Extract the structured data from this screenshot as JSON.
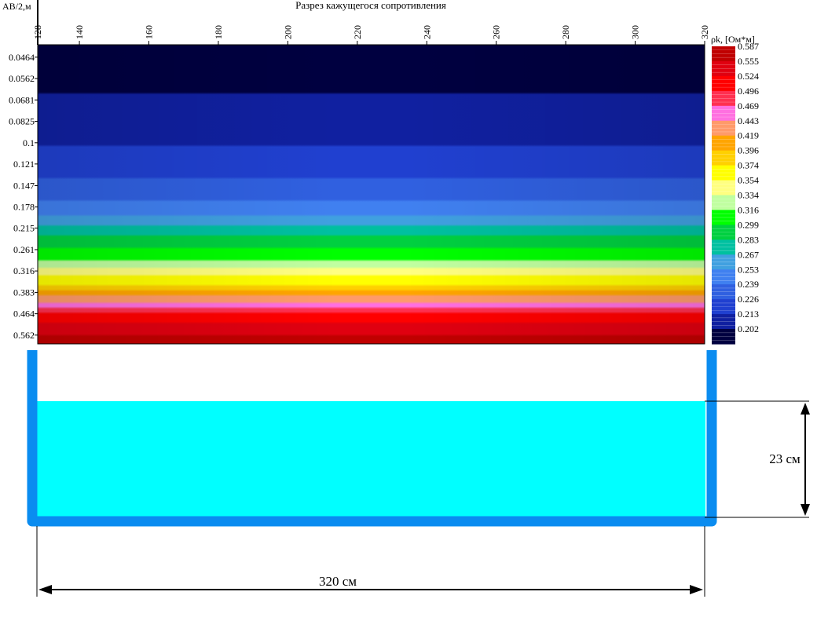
{
  "chart_data": {
    "type": "heatmap",
    "title": "Разрез кажущегося сопротивления",
    "ylabel": "AB/2,м",
    "x_ticks": [
      128,
      140,
      160,
      180,
      200,
      220,
      240,
      260,
      280,
      300,
      320
    ],
    "xlim": [
      128,
      320
    ],
    "y_ticks": [
      0.0464,
      0.0562,
      0.0681,
      0.0825,
      0.1,
      0.121,
      0.147,
      0.178,
      0.215,
      0.261,
      0.316,
      0.383,
      0.464,
      0.562
    ],
    "y_tick_labels": [
      "0.0464",
      "0.0562",
      "0.0681",
      "0.0825",
      "0.1",
      "0.121",
      "0.147",
      "0.178",
      "0.215",
      "0.261",
      "0.316",
      "0.383",
      "0.464",
      "0.562"
    ],
    "y_scale": "log",
    "y_direction": "down",
    "colorbar": {
      "title": "ρk, [Ом*м]",
      "levels": [
        0.587,
        0.555,
        0.524,
        0.496,
        0.469,
        0.443,
        0.419,
        0.396,
        0.374,
        0.354,
        0.334,
        0.316,
        0.299,
        0.283,
        0.267,
        0.253,
        0.239,
        0.226,
        0.213,
        0.202
      ],
      "level_labels": [
        "0.587",
        "0.555",
        "0.524",
        "0.496",
        "0.469",
        "0.443",
        "0.419",
        "0.396",
        "0.374",
        "0.354",
        "0.334",
        "0.316",
        "0.299",
        "0.283",
        "0.267",
        "0.253",
        "0.239",
        "0.226",
        "0.213",
        "0.202"
      ],
      "colors_high_to_low": [
        "#c00000",
        "#e00010",
        "#ff0000",
        "#ff3050",
        "#ff70e0",
        "#ff9a6a",
        "#ffa500",
        "#ffd000",
        "#ffff00",
        "#ffff80",
        "#c0ffa0",
        "#00ff00",
        "#00d040",
        "#00c0a0",
        "#40a0e0",
        "#4080f0",
        "#3060e0",
        "#2040d0",
        "#1020a0",
        "#000040"
      ]
    },
    "field_profile": [
      {
        "ab2": 0.0464,
        "rho": 0.202
      },
      {
        "ab2": 0.0562,
        "rho": 0.209
      },
      {
        "ab2": 0.0681,
        "rho": 0.215
      },
      {
        "ab2": 0.0825,
        "rho": 0.22
      },
      {
        "ab2": 0.1,
        "rho": 0.225
      },
      {
        "ab2": 0.121,
        "rho": 0.232
      },
      {
        "ab2": 0.147,
        "rho": 0.242
      },
      {
        "ab2": 0.178,
        "rho": 0.258
      },
      {
        "ab2": 0.2,
        "rho": 0.27
      },
      {
        "ab2": 0.215,
        "rho": 0.29
      },
      {
        "ab2": 0.24,
        "rho": 0.305
      },
      {
        "ab2": 0.261,
        "rho": 0.318
      },
      {
        "ab2": 0.29,
        "rho": 0.335
      },
      {
        "ab2": 0.316,
        "rho": 0.36
      },
      {
        "ab2": 0.35,
        "rho": 0.39
      },
      {
        "ab2": 0.383,
        "rho": 0.425
      },
      {
        "ab2": 0.42,
        "rho": 0.47
      },
      {
        "ab2": 0.464,
        "rho": 0.53
      },
      {
        "ab2": 0.51,
        "rho": 0.56
      },
      {
        "ab2": 0.562,
        "rho": 0.587
      }
    ]
  },
  "tank": {
    "depth_label": "23 см",
    "width_label": "320 см",
    "wall_color": "#0a8cf0",
    "water_color": "#00ffff"
  }
}
